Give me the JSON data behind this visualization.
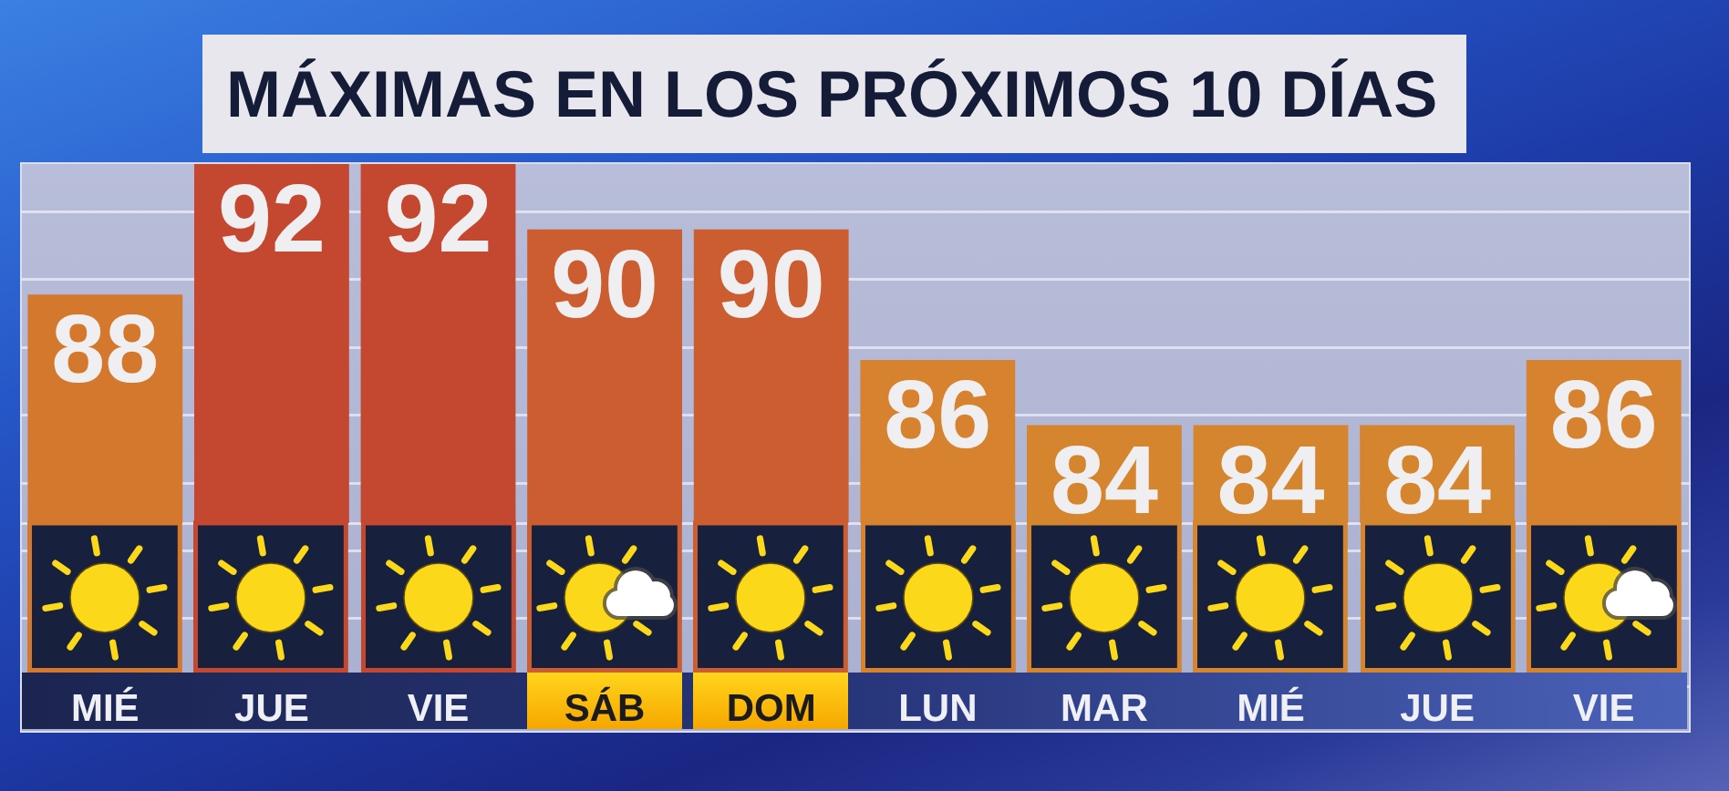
{
  "chart_data": {
    "type": "bar",
    "title": "MÁXIMAS EN LOS PRÓXIMOS 10 DÍAS",
    "categories": [
      "MIÉ",
      "JUE",
      "VIE",
      "SÁB",
      "DOM",
      "LUN",
      "MAR",
      "MIÉ",
      "JUE",
      "VIE"
    ],
    "values": [
      88,
      92,
      92,
      90,
      90,
      86,
      84,
      84,
      84,
      86
    ],
    "colors": [
      "#d4782e",
      "#c4472f",
      "#c4472f",
      "#cb5d31",
      "#cb5d31",
      "#d6822f",
      "#d6852f",
      "#d6852f",
      "#d6852f",
      "#d6822f"
    ],
    "ylim": [
      81,
      92
    ],
    "tick_labels": "x",
    "data_labels": true
  }
}
